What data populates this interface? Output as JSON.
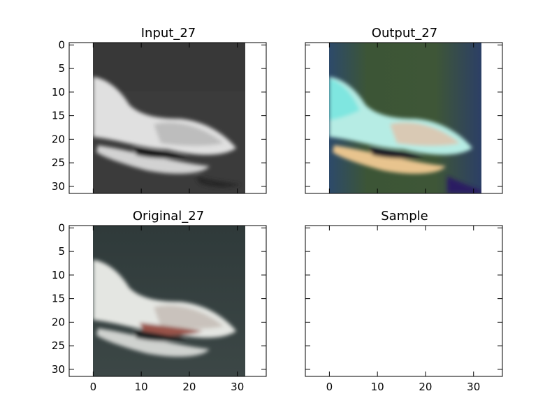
{
  "figure": {
    "panels": [
      {
        "title": "Input_27",
        "show_y_ticks": true,
        "show_x_ticks": false,
        "image": "grayscale photo of a white boat on dark water",
        "image_palette": {
          "background": "#3b3b3b",
          "subject": "#dcdcdc",
          "shadow": "#1e1e1e"
        }
      },
      {
        "title": "Output_27",
        "show_y_ticks": false,
        "show_x_ticks": false,
        "image": "colorized reconstruction with green/blue cast",
        "image_palette": {
          "background": "#3c5536",
          "edge": "#2f3e66",
          "subject": "#a8e8e0",
          "hull": "#e9c48e"
        }
      },
      {
        "title": "Original_27",
        "show_y_ticks": true,
        "show_x_ticks": true,
        "image": "color photo of a white boat with red trim on dark slate water",
        "image_palette": {
          "background": "#34403e",
          "subject": "#e4e6e2",
          "trim": "#9a5248"
        }
      },
      {
        "title": "Sample",
        "show_y_ticks": false,
        "show_x_ticks": true,
        "image": "",
        "image_palette": {}
      }
    ],
    "x_ticks": [
      "0",
      "10",
      "20",
      "30"
    ],
    "y_ticks": [
      "0",
      "5",
      "10",
      "15",
      "20",
      "25",
      "30"
    ]
  }
}
